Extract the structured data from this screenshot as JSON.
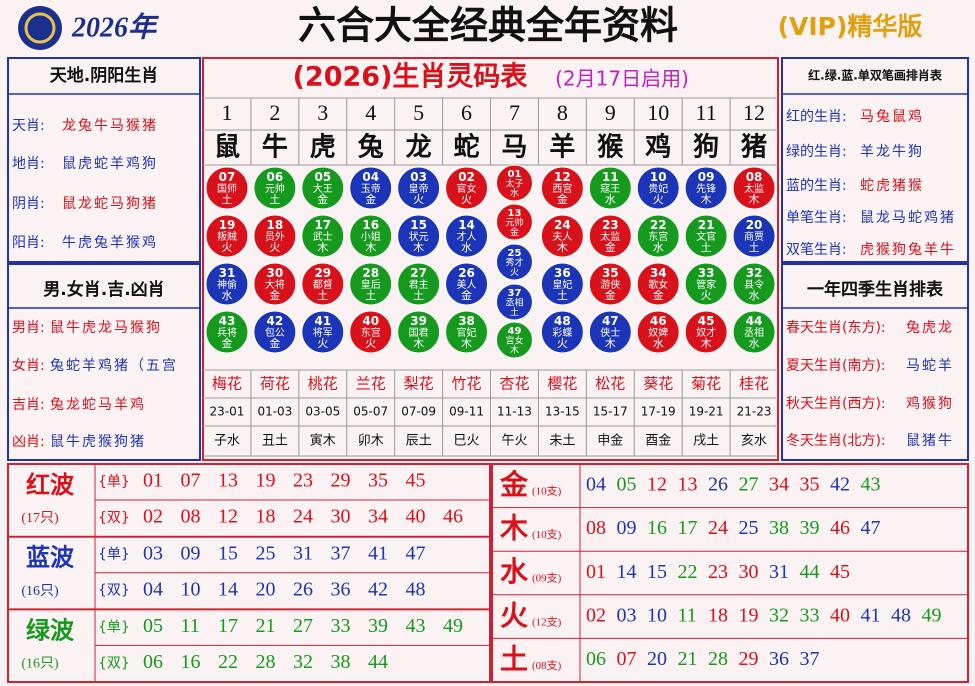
{
  "header": {
    "year": "2026年",
    "title": "六合大全经典全年资料",
    "badge": "(VIP)精华版"
  },
  "left_panels": [
    {
      "title": "天地.阴阳生肖",
      "rows": [
        [
          "天肖:",
          "龙兔牛马猴猪"
        ],
        [
          "地肖:",
          "鼠虎蛇羊鸡狗"
        ],
        [
          "阴肖:",
          "鼠龙蛇马狗猪"
        ],
        [
          "阳肖:",
          "牛虎兔羊猴鸡"
        ]
      ]
    },
    {
      "title": "男.女肖.吉.凶肖",
      "rows": [
        [
          "男肖:",
          "鼠牛虎龙马猴狗"
        ],
        [
          "女肖:",
          "兔蛇羊鸡猪（五宫"
        ],
        [
          "吉肖:",
          "兔龙蛇马羊鸡"
        ],
        [
          "凶肖:",
          "鼠牛虎猴狗猪"
        ]
      ]
    }
  ],
  "right_panels": [
    {
      "title": "红.绿.蓝.单双笔画排肖表",
      "rows": [
        [
          "红的生肖:",
          "马兔鼠鸡"
        ],
        [
          "绿的生肖:",
          "羊龙牛狗"
        ],
        [
          "蓝的生肖:",
          "蛇虎猪猴"
        ],
        [
          "单笔生肖:",
          "鼠龙马蛇鸡猪"
        ],
        [
          "双笔生肖:",
          "虎猴狗兔羊牛"
        ]
      ]
    },
    {
      "title": "一年四季生肖排表",
      "rows": [
        [
          "春天生肖(东方):",
          "兔虎龙"
        ],
        [
          "夏天生肖(南方):",
          "马蛇羊"
        ],
        [
          "秋天生肖(西方):",
          "鸡猴狗"
        ],
        [
          "冬天生肖(北方):",
          "鼠猪牛"
        ]
      ]
    }
  ],
  "table": {
    "title": "(2026)生肖灵码表",
    "subtitle": "(2月17日启用)",
    "columns": [
      {
        "number": 1,
        "zodiac": "鼠",
        "balls": [
          {
            "n": "07",
            "name": "国师",
            "el": "土"
          },
          {
            "n": "19",
            "name": "叛贼",
            "el": "火"
          },
          {
            "n": "31",
            "name": "神偷",
            "el": "水"
          },
          {
            "n": "43",
            "name": "兵将",
            "el": "金"
          }
        ],
        "flower": "梅花",
        "time": "23-01",
        "branch": "子水"
      },
      {
        "number": 2,
        "zodiac": "牛",
        "balls": [
          {
            "n": "06",
            "name": "元帅",
            "el": "土"
          },
          {
            "n": "18",
            "name": "员外",
            "el": "火"
          },
          {
            "n": "30",
            "name": "大将",
            "el": "金"
          },
          {
            "n": "42",
            "name": "包公",
            "el": "金"
          }
        ],
        "flower": "荷花",
        "time": "01-03",
        "branch": "丑土"
      },
      {
        "number": 3,
        "zodiac": "虎",
        "balls": [
          {
            "n": "05",
            "name": "大王",
            "el": "金"
          },
          {
            "n": "17",
            "name": "武士",
            "el": "木"
          },
          {
            "n": "29",
            "name": "都督",
            "el": "土"
          },
          {
            "n": "41",
            "name": "将军",
            "el": "火"
          }
        ],
        "flower": "桃花",
        "time": "03-05",
        "branch": "寅木"
      },
      {
        "number": 4,
        "zodiac": "兔",
        "balls": [
          {
            "n": "04",
            "name": "玉帝",
            "el": "金"
          },
          {
            "n": "16",
            "name": "小姐",
            "el": "木"
          },
          {
            "n": "28",
            "name": "皇后",
            "el": "土"
          },
          {
            "n": "40",
            "name": "东宫",
            "el": "火"
          }
        ],
        "flower": "兰花",
        "time": "05-07",
        "branch": "卯木"
      },
      {
        "number": 5,
        "zodiac": "龙",
        "balls": [
          {
            "n": "03",
            "name": "皇帝",
            "el": "火"
          },
          {
            "n": "15",
            "name": "状元",
            "el": "木"
          },
          {
            "n": "27",
            "name": "君主",
            "el": "土"
          },
          {
            "n": "39",
            "name": "国君",
            "el": "木"
          }
        ],
        "flower": "梨花",
        "time": "07-09",
        "branch": "辰土"
      },
      {
        "number": 6,
        "zodiac": "蛇",
        "balls": [
          {
            "n": "02",
            "name": "官女",
            "el": "火"
          },
          {
            "n": "14",
            "name": "才人",
            "el": "水"
          },
          {
            "n": "26",
            "name": "美人",
            "el": "金"
          },
          {
            "n": "38",
            "name": "官妃",
            "el": "木"
          }
        ],
        "flower": "竹花",
        "time": "09-11",
        "branch": "巳火"
      },
      {
        "number": 7,
        "zodiac": "马",
        "balls": [
          {
            "n": "01",
            "name": "太子",
            "el": "水"
          },
          {
            "n": "13",
            "name": "元帅",
            "el": "金"
          },
          {
            "n": "25",
            "name": "秀才",
            "el": "火"
          },
          {
            "n": "37",
            "name": "丞相",
            "el": "土"
          },
          {
            "n": "49",
            "name": "宫女",
            "el": "木"
          }
        ],
        "flower": "杏花",
        "time": "11-13",
        "branch": "午火"
      },
      {
        "number": 8,
        "zodiac": "羊",
        "balls": [
          {
            "n": "12",
            "name": "西宫",
            "el": "金"
          },
          {
            "n": "24",
            "name": "夫人",
            "el": "木"
          },
          {
            "n": "36",
            "name": "皇妃",
            "el": "土"
          },
          {
            "n": "48",
            "name": "彩蝶",
            "el": "火"
          }
        ],
        "flower": "樱花",
        "time": "13-15",
        "branch": "未土"
      },
      {
        "number": 9,
        "zodiac": "猴",
        "balls": [
          {
            "n": "11",
            "name": "寇王",
            "el": "水"
          },
          {
            "n": "23",
            "name": "太监",
            "el": "金"
          },
          {
            "n": "35",
            "name": "游侠",
            "el": "金"
          },
          {
            "n": "47",
            "name": "侠士",
            "el": "木"
          }
        ],
        "flower": "松花",
        "time": "15-17",
        "branch": "申金"
      },
      {
        "number": 10,
        "zodiac": "鸡",
        "balls": [
          {
            "n": "10",
            "name": "贵妃",
            "el": "火"
          },
          {
            "n": "22",
            "name": "东宫",
            "el": "水"
          },
          {
            "n": "34",
            "name": "歌女",
            "el": "金"
          },
          {
            "n": "46",
            "name": "奴婢",
            "el": "水"
          }
        ],
        "flower": "葵花",
        "time": "17-19",
        "branch": "酉金"
      },
      {
        "number": 11,
        "zodiac": "狗",
        "balls": [
          {
            "n": "09",
            "name": "先锋",
            "el": "木"
          },
          {
            "n": "21",
            "name": "文官",
            "el": "土"
          },
          {
            "n": "33",
            "name": "管家",
            "el": "火"
          },
          {
            "n": "45",
            "name": "奴才",
            "el": "木"
          }
        ],
        "flower": "菊花",
        "time": "19-21",
        "branch": "戌土"
      },
      {
        "number": 12,
        "zodiac": "猪",
        "balls": [
          {
            "n": "08",
            "name": "太监",
            "el": "木"
          },
          {
            "n": "20",
            "name": "商贾",
            "el": "土"
          },
          {
            "n": "32",
            "name": "县令",
            "el": "水"
          },
          {
            "n": "44",
            "name": "丞相",
            "el": "水"
          }
        ],
        "flower": "桂花",
        "time": "21-23",
        "branch": "亥水"
      }
    ]
  },
  "waves": [
    {
      "name": "红波",
      "count": "(17只)",
      "color": "#d8111a",
      "rows": [
        {
          "label": "{单}",
          "numbers": [
            "01",
            "07",
            "13",
            "19",
            "23",
            "29",
            "35",
            "45"
          ]
        },
        {
          "label": "{双}",
          "numbers": [
            "02",
            "08",
            "12",
            "18",
            "24",
            "30",
            "34",
            "40",
            "46"
          ]
        }
      ]
    },
    {
      "name": "蓝波",
      "count": "(16只)",
      "color": "#1c35b8",
      "rows": [
        {
          "label": "{单}",
          "numbers": [
            "03",
            "09",
            "15",
            "25",
            "31",
            "37",
            "41",
            "47"
          ]
        },
        {
          "label": "{双}",
          "numbers": [
            "04",
            "10",
            "14",
            "20",
            "26",
            "36",
            "42",
            "48"
          ]
        }
      ]
    },
    {
      "name": "绿波",
      "count": "(16只)",
      "color": "#169a1e",
      "rows": [
        {
          "label": "{单}",
          "numbers": [
            "05",
            "11",
            "17",
            "21",
            "27",
            "33",
            "39",
            "43",
            "49"
          ]
        },
        {
          "label": "{双}",
          "numbers": [
            "06",
            "16",
            "22",
            "28",
            "32",
            "38",
            "44"
          ]
        }
      ]
    }
  ],
  "elements": [
    {
      "name": "金",
      "count": "(10支)",
      "numbers": [
        "04",
        "05",
        "12",
        "13",
        "26",
        "27",
        "34",
        "35",
        "42",
        "43"
      ]
    },
    {
      "name": "木",
      "count": "(10支)",
      "numbers": [
        "08",
        "09",
        "16",
        "17",
        "24",
        "25",
        "38",
        "39",
        "46",
        "47"
      ]
    },
    {
      "name": "水",
      "count": "(09支)",
      "numbers": [
        "01",
        "14",
        "15",
        "22",
        "23",
        "30",
        "31",
        "44",
        "45"
      ]
    },
    {
      "name": "火",
      "count": "(12支)",
      "numbers": [
        "02",
        "03",
        "10",
        "11",
        "18",
        "19",
        "32",
        "33",
        "40",
        "41",
        "48",
        "49"
      ]
    },
    {
      "name": "土",
      "count": "(08支)",
      "numbers": [
        "06",
        "07",
        "20",
        "21",
        "28",
        "29",
        "36",
        "37"
      ]
    }
  ]
}
